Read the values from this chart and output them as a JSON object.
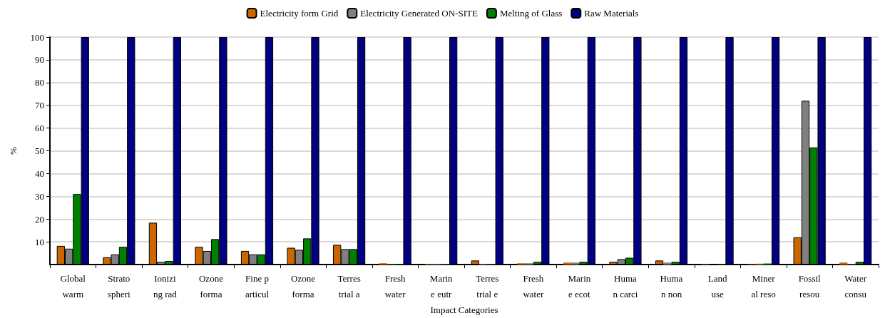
{
  "chart_data": {
    "type": "bar",
    "xlabel": "Impact Categories",
    "ylabel": "%",
    "categories": [
      "Global\nwarm",
      "Strato\nspheri",
      "Ionizi\nng rad",
      "Ozone\nforma",
      "Fine p\narticul",
      "Ozone\nforma",
      "Terres\ntrial a",
      "Fresh\nwater",
      "Marin\ne eutr",
      "Terres\ntrial e",
      "Fresh\nwater",
      "Marin\ne ecot",
      "Huma\nn carci",
      "Huma\nn non",
      "Land\nuse",
      "Miner\nal reso",
      "Fossil\nresou",
      "Water\nconsu"
    ],
    "series": [
      {
        "name": "Electricity form Grid",
        "color": "#cc6600",
        "values": [
          8.2,
          3.2,
          18.4,
          7.8,
          6,
          7.4,
          8.7,
          0.6,
          0.3,
          1.8,
          0.6,
          0.9,
          1.2,
          1.8,
          0.2,
          0.2,
          12,
          0.9
        ]
      },
      {
        "name": "Electricity Generated ON-SITE",
        "color": "#808080",
        "values": [
          7,
          4.5,
          1.2,
          6,
          4.5,
          6.5,
          6.8,
          0.2,
          0.3,
          0.3,
          0.6,
          0.9,
          2.4,
          0.9,
          null,
          0.4,
          72,
          0.2
        ]
      },
      {
        "name": "Melting of Glass",
        "color": "#008000",
        "values": [
          31,
          7.8,
          1.6,
          11.2,
          4.5,
          11.5,
          6.8,
          0.2,
          0.3,
          0.3,
          1.2,
          1.2,
          3,
          1.2,
          0.2,
          0.5,
          51.5,
          1.2
        ]
      },
      {
        "name": "Raw Materials",
        "color": "#000080",
        "values": [
          100,
          100,
          100,
          100,
          100,
          100,
          100,
          100,
          100,
          100,
          100,
          100,
          100,
          100,
          100,
          100,
          100,
          100
        ]
      }
    ],
    "ylim": [
      0,
      100
    ],
    "yticks": [
      10,
      20,
      30,
      40,
      50,
      60,
      70,
      80,
      90,
      100
    ],
    "grid": "y",
    "legend": "top"
  }
}
